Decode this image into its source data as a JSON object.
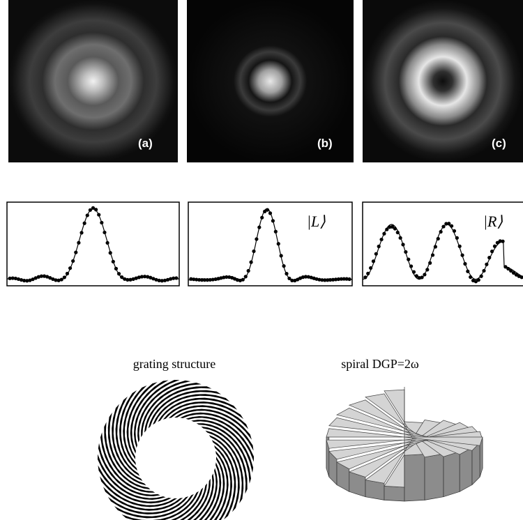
{
  "panels": [
    {
      "label": "(a)"
    },
    {
      "label": "(b)"
    },
    {
      "label": "(c)"
    }
  ],
  "profiles": [
    {
      "label": "|L⟩"
    },
    {
      "label": "|R⟩"
    }
  ],
  "captions": {
    "grating": "grating structure",
    "spiral": "spiral DGP=2ω"
  }
}
